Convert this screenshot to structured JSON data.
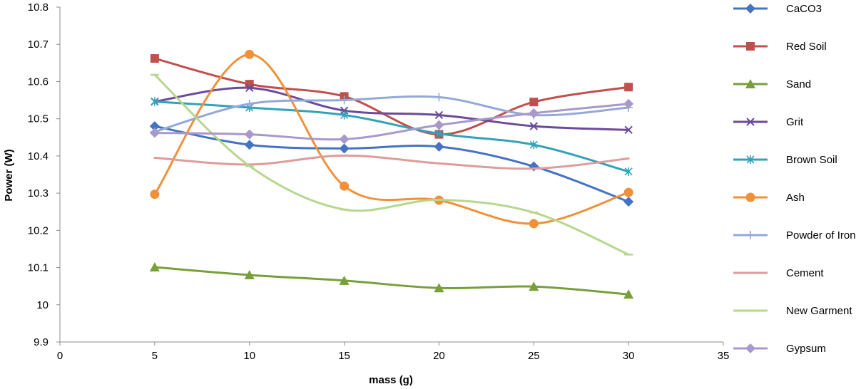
{
  "chart_data": {
    "type": "line",
    "title": "",
    "xlabel": "mass (g)",
    "ylabel": "Power (W)",
    "xlim": [
      0,
      35
    ],
    "ylim": [
      9.9,
      10.8
    ],
    "x_ticks": [
      "0",
      "5",
      "10",
      "15",
      "20",
      "25",
      "30",
      "35"
    ],
    "y_ticks": [
      "9.9",
      "10",
      "10.1",
      "10.2",
      "10.3",
      "10.4",
      "10.5",
      "10.6",
      "10.7",
      "10.8"
    ],
    "grid": false,
    "smoothed": true,
    "legend_position": "right",
    "x": [
      5,
      10,
      15,
      20,
      25,
      30
    ],
    "series": [
      {
        "name": "CaCO3",
        "color": "#4472C4",
        "marker": "diamond",
        "values": [
          10.48,
          10.43,
          10.42,
          10.425,
          10.372,
          10.277
        ]
      },
      {
        "name": "Red Soil",
        "color": "#C0504D",
        "marker": "square",
        "values": [
          10.662,
          10.593,
          10.56,
          10.458,
          10.545,
          10.585
        ]
      },
      {
        "name": "Sand",
        "color": "#77A03A",
        "marker": "triangle",
        "values": [
          10.101,
          10.08,
          10.065,
          10.045,
          10.049,
          10.028
        ]
      },
      {
        "name": "Grit",
        "color": "#6B4B9A",
        "marker": "x",
        "values": [
          10.546,
          10.583,
          10.522,
          10.51,
          10.48,
          10.47
        ]
      },
      {
        "name": "Brown Soil",
        "color": "#33A2B8",
        "marker": "asterisk",
        "values": [
          10.546,
          10.53,
          10.51,
          10.46,
          10.43,
          10.358
        ]
      },
      {
        "name": "Ash",
        "color": "#F0913A",
        "marker": "circle",
        "values": [
          10.297,
          10.673,
          10.319,
          10.281,
          10.218,
          10.302
        ]
      },
      {
        "name": "Powder of Iron",
        "color": "#92A9D9",
        "marker": "plus",
        "values": [
          10.465,
          10.54,
          10.55,
          10.558,
          10.51,
          10.53
        ]
      },
      {
        "name": "Cement",
        "color": "#DE9C9A",
        "marker": "none",
        "values": [
          10.395,
          10.377,
          10.401,
          10.38,
          10.366,
          10.393
        ]
      },
      {
        "name": "New Garment",
        "color": "#B6D78D",
        "marker": "dash",
        "values": [
          10.618,
          10.373,
          10.256,
          10.282,
          10.248,
          10.135
        ]
      },
      {
        "name": "Gypsum",
        "color": "#A999CB",
        "marker": "diamond",
        "values": [
          10.462,
          10.458,
          10.445,
          10.483,
          10.515,
          10.54
        ]
      }
    ]
  }
}
